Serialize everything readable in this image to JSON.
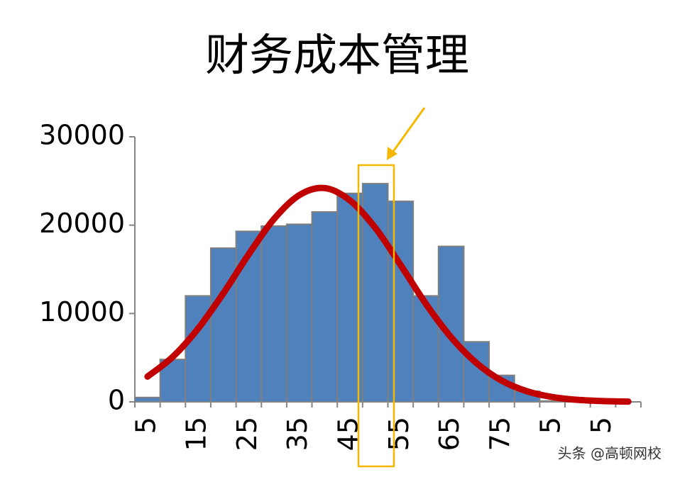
{
  "chart_data": {
    "type": "bar",
    "title": "财务成本管理",
    "categories": [
      "5",
      null,
      "15",
      null,
      "25",
      null,
      "35",
      null,
      "45",
      null,
      "55",
      null,
      "65",
      null,
      "75",
      null,
      "5",
      null,
      "5",
      null
    ],
    "values": [
      500,
      4800,
      12000,
      17400,
      19300,
      19900,
      20100,
      21500,
      23600,
      24700,
      22700,
      12000,
      17600,
      6800,
      3000,
      1200,
      100,
      0,
      0,
      0
    ],
    "color": "#4f81bd",
    "curve": {
      "color": "#c00000",
      "values": [
        2860,
        5100,
        8300,
        12300,
        16700,
        20700,
        23400,
        24200,
        22800,
        19700,
        15500,
        11100,
        7300,
        4400,
        2400,
        1200,
        550,
        230,
        90,
        30
      ]
    },
    "ylim": [
      0,
      30000
    ],
    "yticks": [
      0,
      10000,
      20000,
      30000
    ],
    "grid": false,
    "watermark": "头条 @高顿网校"
  }
}
